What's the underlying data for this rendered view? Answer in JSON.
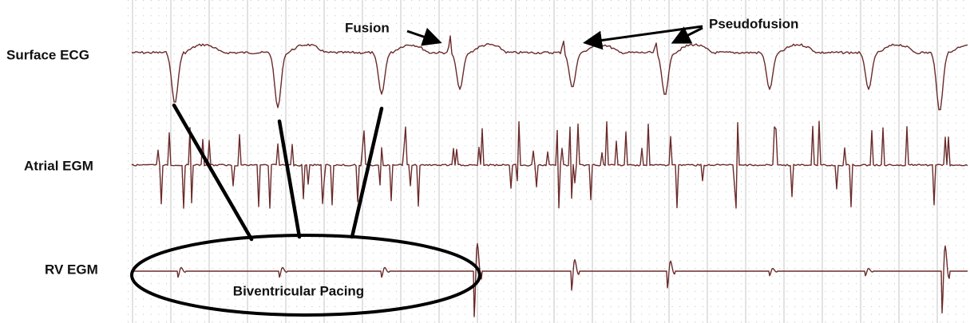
{
  "labels": {
    "surface_ecg": "Surface ECG",
    "atrial_egm": "Atrial EGM",
    "rv_egm": "RV EGM"
  },
  "annotations": {
    "fusion": "Fusion",
    "pseudofusion": "Pseudofusion",
    "biventricular_pacing": "Biventricular Pacing"
  }
}
